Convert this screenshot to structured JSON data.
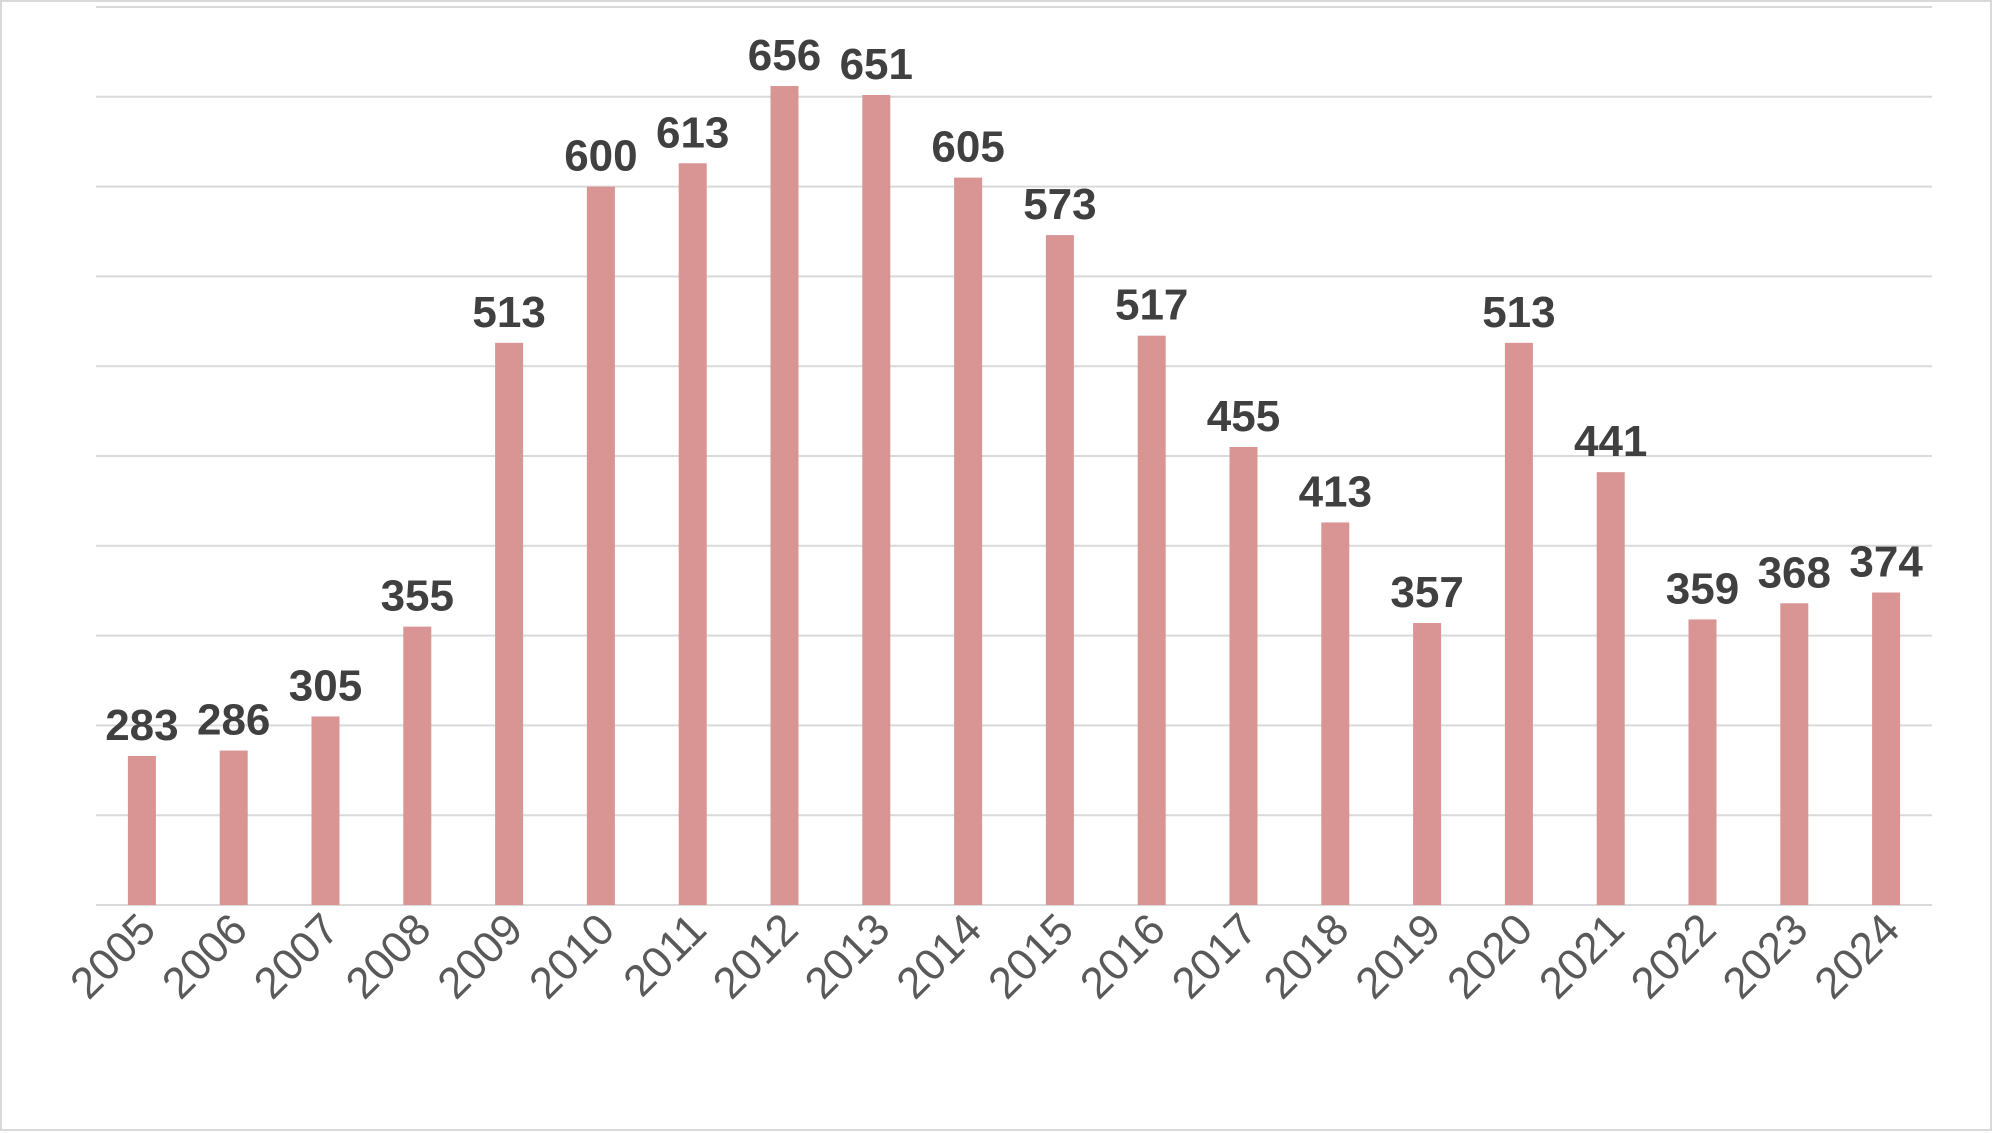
{
  "chart_data": {
    "type": "bar",
    "title": "",
    "xlabel": "",
    "ylabel": "",
    "categories": [
      "2005",
      "2006",
      "2007",
      "2008",
      "2009",
      "2010",
      "2011",
      "2012",
      "2013",
      "2014",
      "2015",
      "2016",
      "2017",
      "2018",
      "2019",
      "2020",
      "2021",
      "2022",
      "2023",
      "2024"
    ],
    "values": [
      283,
      286,
      305,
      355,
      513,
      600,
      613,
      656,
      651,
      605,
      573,
      517,
      455,
      413,
      357,
      513,
      441,
      359,
      368,
      374
    ],
    "ylim": [
      200,
      700
    ],
    "ytick_step": 50,
    "y_tick_labels_shown": false,
    "grid": true,
    "legend": "none",
    "data_labels": true,
    "x_tick_rotation_deg": -45,
    "colors": {
      "bar": "#d99594",
      "grid": "#d9d9d9",
      "data_label": "#404040",
      "tick_label": "#595959",
      "border": "#d9d9d9"
    }
  }
}
